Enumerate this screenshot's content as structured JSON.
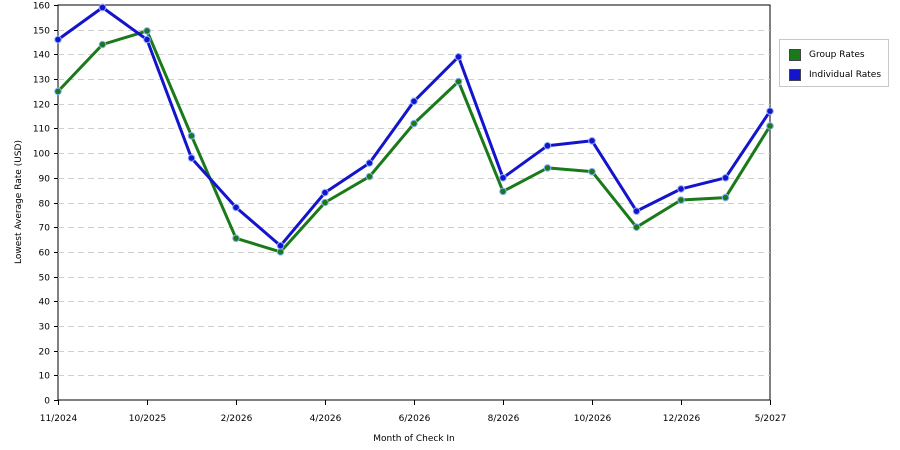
{
  "chart_data": {
    "type": "line",
    "xlabel": "Month of Check In",
    "ylabel": "Lowest Average Rate (USD)",
    "ylim": [
      0,
      160
    ],
    "yticks": [
      0,
      10,
      20,
      30,
      40,
      50,
      60,
      70,
      80,
      90,
      100,
      110,
      120,
      130,
      140,
      150,
      160
    ],
    "x_tick_labels": [
      "11/2024",
      "10/2025",
      "2/2026",
      "4/2026",
      "6/2026",
      "8/2026",
      "10/2026",
      "12/2026",
      "5/2027"
    ],
    "x_tick_index": [
      0,
      2,
      4,
      6,
      8,
      10,
      12,
      14,
      16
    ],
    "point_count": 17,
    "grid": true,
    "legend_position": "right",
    "series": [
      {
        "name": "Group Rates",
        "color": "#1a7a1a",
        "values": [
          125,
          144,
          149.5,
          107,
          65.5,
          60,
          80,
          90.5,
          112,
          129,
          84.5,
          94,
          92.5,
          70,
          81,
          82,
          111
        ]
      },
      {
        "name": "Individual Rates",
        "color": "#1414cc",
        "values": [
          146,
          159,
          146,
          98,
          78,
          62.5,
          84,
          96,
          121,
          139,
          90,
          103,
          105,
          76.5,
          85.5,
          90,
          117
        ]
      }
    ]
  }
}
